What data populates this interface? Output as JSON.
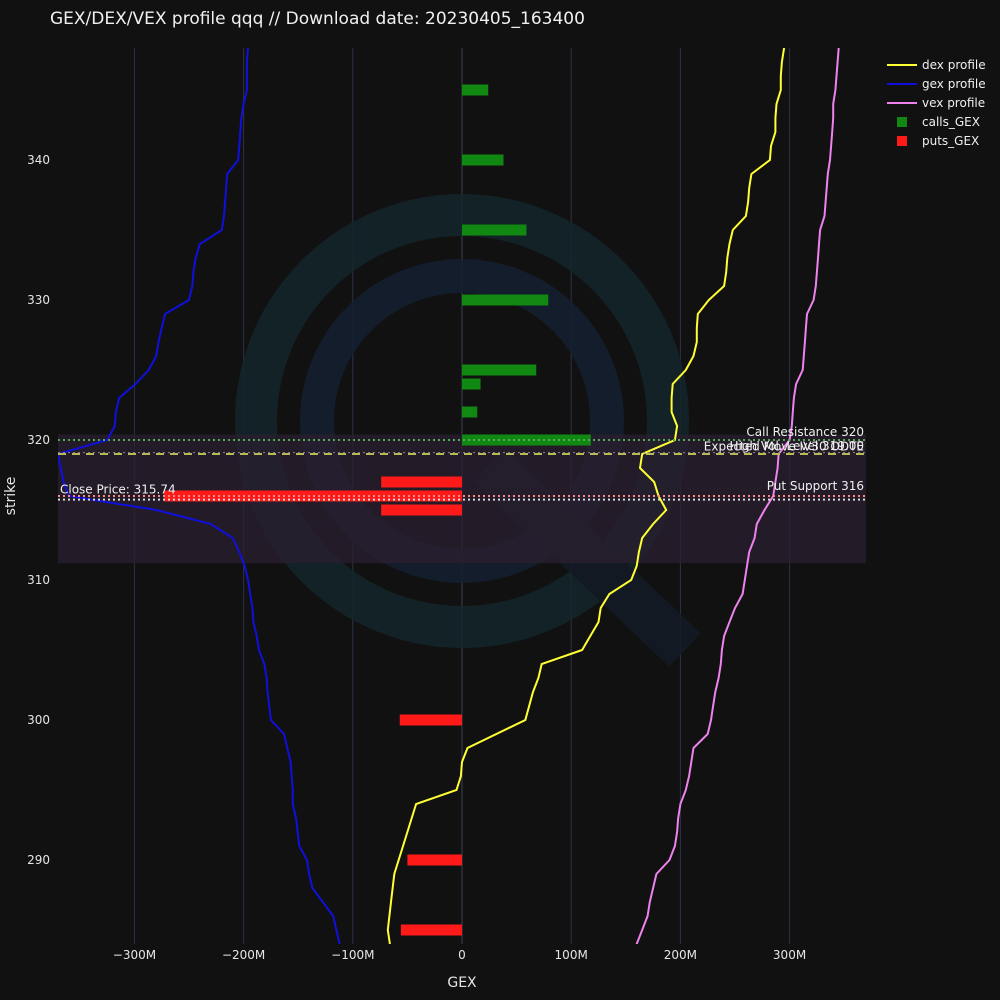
{
  "chart_data": {
    "type": "bar",
    "title": "GEX/DEX/VEX profile qqq //  Download date: 20230405_163400",
    "xlabel": "GEX",
    "ylabel": "strike",
    "xlim": [
      -370,
      370
    ],
    "ylim": [
      284,
      348
    ],
    "x_ticks": [
      {
        "value": -300,
        "label": "−300M"
      },
      {
        "value": -200,
        "label": "−200M"
      },
      {
        "value": -100,
        "label": "−100M"
      },
      {
        "value": 0,
        "label": "0"
      },
      {
        "value": 100,
        "label": "100M"
      },
      {
        "value": 200,
        "label": "200M"
      },
      {
        "value": 300,
        "label": "300M"
      }
    ],
    "y_ticks": [
      {
        "value": 290,
        "label": "290"
      },
      {
        "value": 300,
        "label": "300"
      },
      {
        "value": 310,
        "label": "310"
      },
      {
        "value": 320,
        "label": "320"
      },
      {
        "value": 330,
        "label": "330"
      },
      {
        "value": 340,
        "label": "340"
      }
    ],
    "x_grid": true,
    "legend_position": "top-right",
    "colors": {
      "dex": "#ffff33",
      "gex": "#1010dd",
      "vex": "#ee82ee",
      "calls": "#118811",
      "puts": "#ff1a1a",
      "background": "#111111",
      "grid": "#2c3346",
      "band": "#2b1f30"
    },
    "series": [
      {
        "name": "dex profile",
        "kind": "line",
        "key": "dex",
        "points": [
          [
            -66,
            284
          ],
          [
            -68,
            285
          ],
          [
            -65,
            287
          ],
          [
            -62,
            289
          ],
          [
            -50,
            292
          ],
          [
            -42,
            294
          ],
          [
            -5,
            295
          ],
          [
            -1,
            296
          ],
          [
            0,
            297
          ],
          [
            5,
            298
          ],
          [
            58,
            300
          ],
          [
            65,
            302
          ],
          [
            70,
            303
          ],
          [
            73,
            304
          ],
          [
            110,
            305
          ],
          [
            125,
            307
          ],
          [
            127,
            308
          ],
          [
            135,
            309
          ],
          [
            155,
            310
          ],
          [
            160,
            311
          ],
          [
            162,
            312
          ],
          [
            165,
            313
          ],
          [
            175,
            314
          ],
          [
            187,
            315
          ],
          [
            180,
            316
          ],
          [
            176,
            317
          ],
          [
            163,
            318
          ],
          [
            165,
            319
          ],
          [
            195,
            320
          ],
          [
            197,
            321
          ],
          [
            192,
            322
          ],
          [
            192,
            323
          ],
          [
            193,
            324
          ],
          [
            205,
            325
          ],
          [
            212,
            326
          ],
          [
            215,
            327
          ],
          [
            215,
            328
          ],
          [
            216,
            329
          ],
          [
            226,
            330
          ],
          [
            240,
            331
          ],
          [
            242,
            332
          ],
          [
            243,
            333
          ],
          [
            245,
            334
          ],
          [
            248,
            335
          ],
          [
            260,
            336
          ],
          [
            262,
            337
          ],
          [
            263,
            338
          ],
          [
            265,
            339
          ],
          [
            282,
            340
          ],
          [
            283,
            341
          ],
          [
            287,
            342
          ],
          [
            287,
            343
          ],
          [
            288,
            344
          ],
          [
            292,
            345
          ],
          [
            292,
            346
          ],
          [
            293,
            347
          ],
          [
            295,
            348
          ]
        ]
      },
      {
        "name": "gex profile",
        "kind": "line",
        "key": "gex",
        "points": [
          [
            -112,
            284
          ],
          [
            -115,
            285
          ],
          [
            -118,
            286
          ],
          [
            -137,
            288
          ],
          [
            -140,
            289
          ],
          [
            -142,
            290
          ],
          [
            -149,
            291
          ],
          [
            -152,
            293
          ],
          [
            -155,
            294
          ],
          [
            -155,
            295
          ],
          [
            -156,
            296
          ],
          [
            -157,
            297
          ],
          [
            -160,
            298
          ],
          [
            -163,
            299
          ],
          [
            -175,
            300
          ],
          [
            -178,
            302
          ],
          [
            -179,
            303
          ],
          [
            -181,
            304
          ],
          [
            -186,
            305
          ],
          [
            -188,
            306
          ],
          [
            -191,
            307
          ],
          [
            -192,
            308
          ],
          [
            -196,
            310
          ],
          [
            -199,
            311
          ],
          [
            -204,
            312
          ],
          [
            -210,
            313
          ],
          [
            -230,
            314
          ],
          [
            -280,
            315
          ],
          [
            -360,
            316
          ],
          [
            -365,
            317
          ],
          [
            -370,
            319
          ],
          [
            -325,
            320
          ],
          [
            -318,
            321
          ],
          [
            -317,
            322
          ],
          [
            -314,
            323
          ],
          [
            -299,
            324
          ],
          [
            -287,
            325
          ],
          [
            -280,
            326
          ],
          [
            -278,
            327
          ],
          [
            -275,
            328
          ],
          [
            -272,
            329
          ],
          [
            -250,
            330
          ],
          [
            -247,
            331
          ],
          [
            -246,
            332
          ],
          [
            -244,
            333
          ],
          [
            -240,
            334
          ],
          [
            -220,
            335
          ],
          [
            -218,
            336
          ],
          [
            -217,
            337
          ],
          [
            -216,
            338
          ],
          [
            -215,
            339
          ],
          [
            -205,
            340
          ],
          [
            -204,
            341
          ],
          [
            -203,
            342
          ],
          [
            -202,
            343
          ],
          [
            -200,
            344
          ],
          [
            -197,
            345
          ],
          [
            -197,
            346
          ],
          [
            -197,
            347
          ],
          [
            -196,
            348
          ]
        ]
      },
      {
        "name": "vex profile",
        "kind": "line",
        "key": "vex",
        "points": [
          [
            151,
            283
          ],
          [
            160,
            284
          ],
          [
            165,
            285
          ],
          [
            170,
            286
          ],
          [
            172,
            287
          ],
          [
            175,
            288
          ],
          [
            178,
            289
          ],
          [
            190,
            290
          ],
          [
            195,
            291
          ],
          [
            197,
            292
          ],
          [
            198,
            293
          ],
          [
            200,
            294
          ],
          [
            205,
            295
          ],
          [
            208,
            296
          ],
          [
            210,
            297
          ],
          [
            212,
            298
          ],
          [
            225,
            299
          ],
          [
            228,
            300
          ],
          [
            230,
            301
          ],
          [
            232,
            302
          ],
          [
            235,
            303
          ],
          [
            237,
            304
          ],
          [
            238,
            305
          ],
          [
            240,
            306
          ],
          [
            245,
            307
          ],
          [
            250,
            308
          ],
          [
            257,
            309
          ],
          [
            259,
            310
          ],
          [
            261,
            311
          ],
          [
            263,
            312
          ],
          [
            268,
            313
          ],
          [
            270,
            314
          ],
          [
            277,
            315
          ],
          [
            285,
            316
          ],
          [
            287,
            317
          ],
          [
            289,
            318
          ],
          [
            290,
            319
          ],
          [
            300,
            320
          ],
          [
            302,
            321
          ],
          [
            303,
            322
          ],
          [
            304,
            323
          ],
          [
            306,
            324
          ],
          [
            312,
            325
          ],
          [
            313,
            326
          ],
          [
            314,
            327
          ],
          [
            315,
            328
          ],
          [
            316,
            329
          ],
          [
            322,
            330
          ],
          [
            324,
            331
          ],
          [
            325,
            332
          ],
          [
            326,
            333
          ],
          [
            327,
            334
          ],
          [
            328,
            335
          ],
          [
            332,
            336
          ],
          [
            333,
            337
          ],
          [
            334,
            338
          ],
          [
            335,
            339
          ],
          [
            337,
            340
          ],
          [
            338,
            341
          ],
          [
            339,
            342
          ],
          [
            340,
            343
          ],
          [
            340,
            344
          ],
          [
            342,
            345
          ],
          [
            343,
            346
          ],
          [
            344,
            347
          ],
          [
            345,
            348
          ]
        ]
      },
      {
        "name": "calls_GEX",
        "kind": "bar",
        "key": "calls",
        "bars": [
          [
            320,
            118
          ],
          [
            322,
            14
          ],
          [
            324,
            17
          ],
          [
            325,
            68
          ],
          [
            330,
            79
          ],
          [
            335,
            59
          ],
          [
            340,
            38
          ],
          [
            345,
            24
          ]
        ]
      },
      {
        "name": "puts_GEX",
        "kind": "bar",
        "key": "puts",
        "bars": [
          [
            285,
            -56
          ],
          [
            290,
            -50
          ],
          [
            300,
            -57
          ],
          [
            315,
            -74
          ],
          [
            316,
            -273
          ],
          [
            317,
            -74
          ]
        ]
      }
    ],
    "band": [
      311.2,
      320.4
    ],
    "annotations": [
      {
        "label": "Call Resistance 320",
        "y": 320,
        "color": "#55aa55",
        "dash": "2,3",
        "width": 2
      },
      {
        "label": "High Vol. Level 319.00",
        "y": 319.0,
        "color": "#bbbb55",
        "dash": "8,6",
        "width": 2
      },
      {
        "label": "Expected Move IV30 ODTE",
        "y": 319.1,
        "color": "#888888",
        "dash": "2,3",
        "width": 1
      },
      {
        "label": "Put Support 316",
        "y": 316,
        "color": "#ff8888",
        "dash": "2,3",
        "width": 2
      },
      {
        "label": "Close Price: 315.74",
        "y": 315.74,
        "color": "#dddddd",
        "dash": "2,3",
        "width": 2
      }
    ]
  }
}
